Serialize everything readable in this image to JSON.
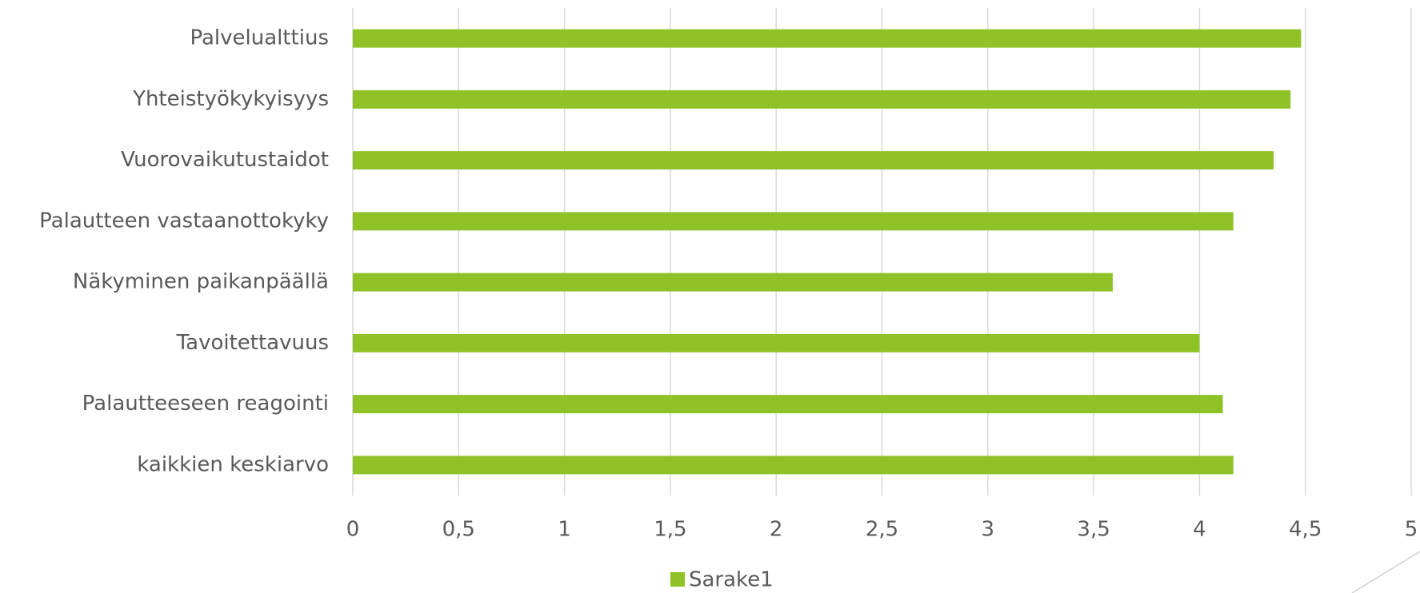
{
  "chart_data": {
    "type": "bar",
    "orientation": "horizontal",
    "categories": [
      "Palvelualttius",
      "Yhteistyökykyisyys",
      "Vuorovaikutustaidot",
      "Palautteen vastaanottokyky",
      "Näkyminen paikanpäällä",
      "Tavoitettavuus",
      "Palautteeseen reagointi",
      "kaikkien keskiarvo"
    ],
    "series": [
      {
        "name": "Sarake1",
        "color": "#8fc227",
        "values": [
          4.48,
          4.43,
          4.35,
          4.16,
          3.59,
          4.0,
          4.11,
          4.16
        ]
      }
    ],
    "xlim": [
      0,
      5
    ],
    "xticks": [
      0,
      {
        "value": 0.5,
        "label": "0,5"
      },
      1,
      {
        "value": 1.5,
        "label": "1,5"
      },
      2,
      {
        "value": 2.5,
        "label": "2,5"
      },
      3,
      {
        "value": 3.5,
        "label": "3,5"
      },
      4,
      {
        "value": 4.5,
        "label": "4,5"
      },
      5
    ],
    "grid": true,
    "legend": "bottom"
  }
}
